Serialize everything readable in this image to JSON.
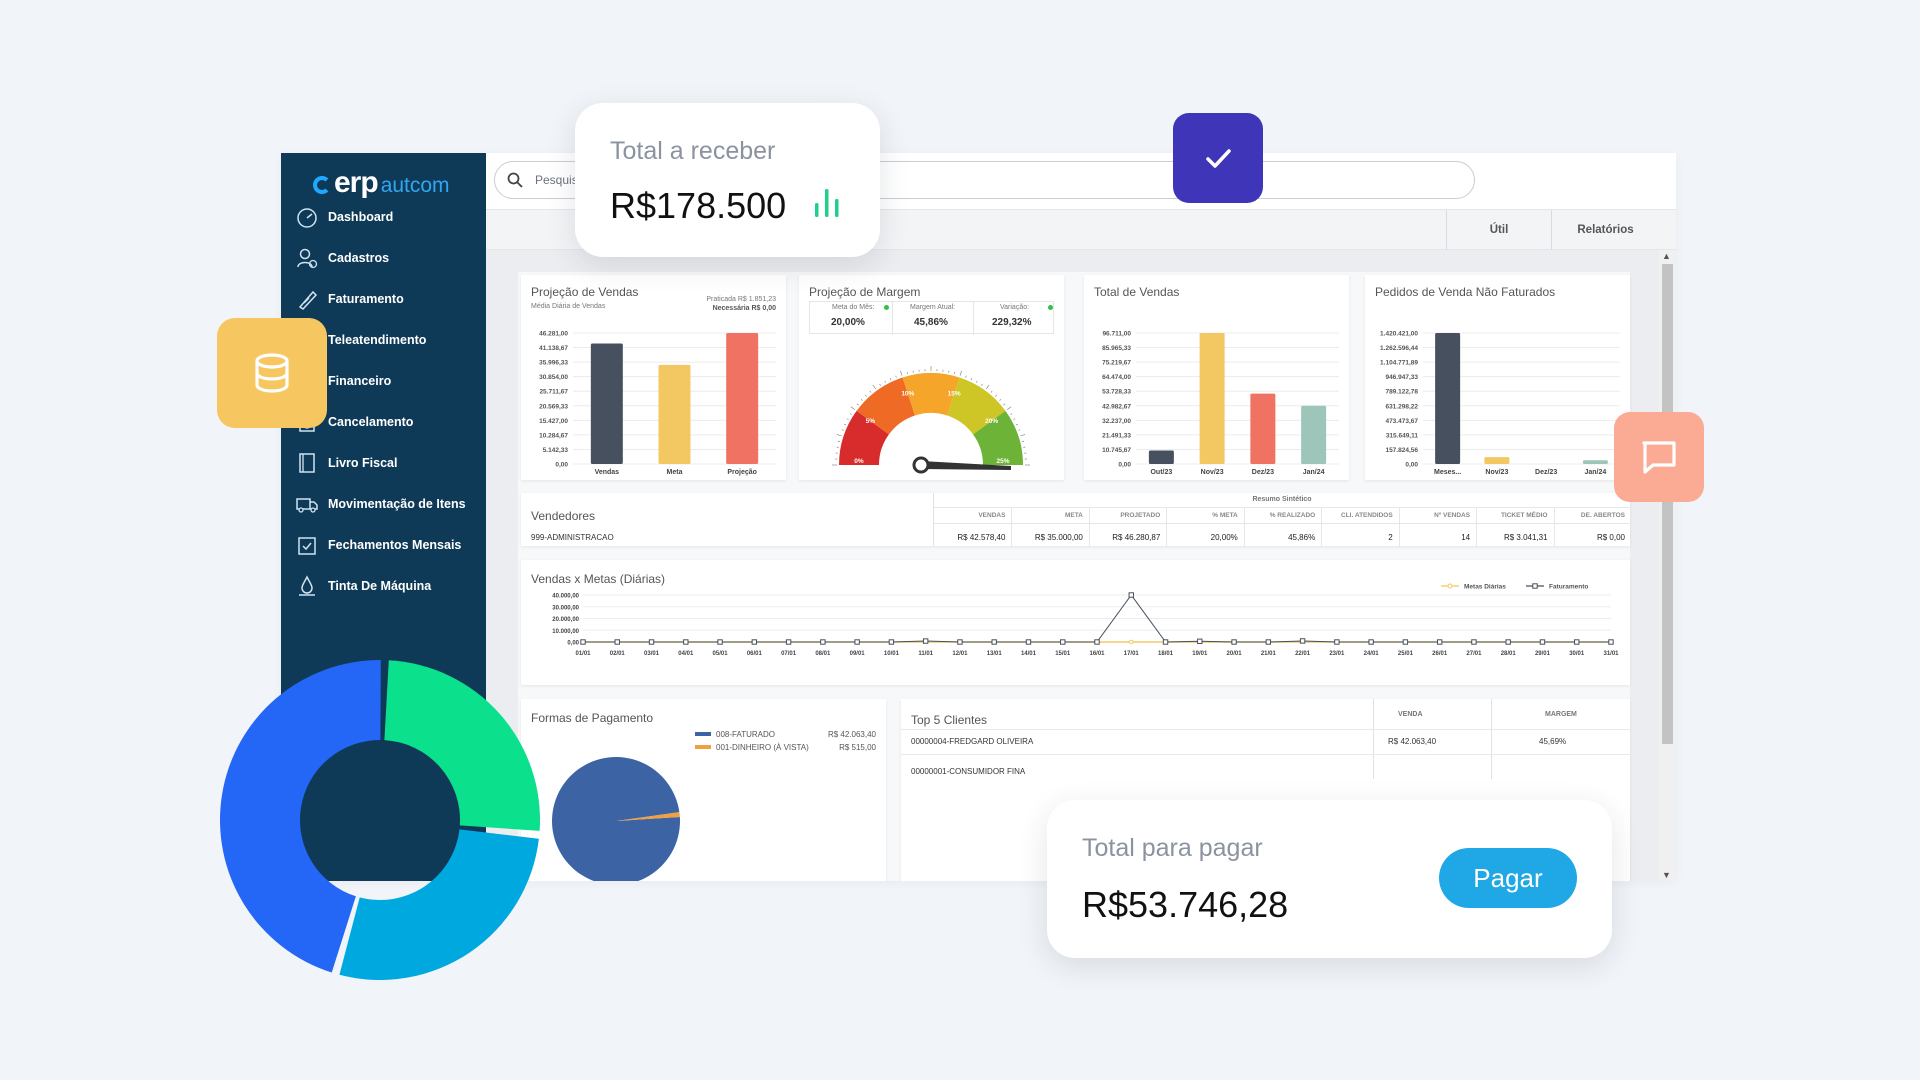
{
  "brand": {
    "erp": "erp",
    "suffix": "autcom",
    "accent": "#2fa6f2"
  },
  "search": {
    "placeholder": "Pesquisar"
  },
  "topnav": {
    "util": "Útil",
    "relatorios": "Relatórios"
  },
  "sidebar": {
    "items": [
      {
        "label": "Dashboard",
        "icon": "gauge-icon"
      },
      {
        "label": "Cadastros",
        "icon": "user-add-icon"
      },
      {
        "label": "Faturamento",
        "icon": "invoice-icon"
      },
      {
        "label": "Teleatendimento",
        "icon": "headset-icon"
      },
      {
        "label": "Financeiro",
        "icon": "money-icon"
      },
      {
        "label": "Cancelamento",
        "icon": "cancel-icon"
      },
      {
        "label": "Livro Fiscal",
        "icon": "book-icon"
      },
      {
        "label": "Movimentação de Itens",
        "icon": "truck-icon"
      },
      {
        "label": "Fechamentos Mensais",
        "icon": "calendar-check-icon"
      },
      {
        "label": "Tinta De Máquina",
        "icon": "ink-icon"
      }
    ]
  },
  "cards": {
    "receber": {
      "label": "Total a receber",
      "value": "R$178.500"
    },
    "pagar": {
      "label": "Total para pagar",
      "value": "R$53.746,28",
      "button": "Pagar"
    }
  },
  "projecao_vendas": {
    "title": "Projeção de Vendas",
    "subtitle": "Média Diária de Vendas",
    "praticada": "Praticada R$ 1.851,23",
    "necessaria": "Necessária R$ 0,00",
    "chart_data": {
      "type": "bar",
      "categories": [
        "Vendas",
        "Meta",
        "Projeção"
      ],
      "values": [
        42578.4,
        35000.0,
        46280.87
      ],
      "colors": [
        "#46505e",
        "#f3c863",
        "#f07263"
      ],
      "yticks": [
        "46.281,00",
        "41.138,67",
        "35.996,33",
        "30.854,00",
        "25.711,67",
        "20.569,33",
        "15.427,00",
        "10.284,67",
        "5.142,33",
        "0,00"
      ],
      "ylim": [
        0,
        46281
      ]
    }
  },
  "projecao_margem": {
    "title": "Projeção de Margem",
    "meta_label": "Meta do Mês:",
    "margem_label": "Margem Atual:",
    "variacao_label": "Variação:",
    "meta": "20,00%",
    "margem": "45,86%",
    "variacao": "229,32%",
    "gauge": {
      "labels": [
        "0%",
        "5%",
        "10%",
        "15%",
        "20%",
        "25%"
      ],
      "value": 25,
      "max": 25
    }
  },
  "total_vendas": {
    "title": "Total de Vendas",
    "chart_data": {
      "type": "bar",
      "categories": [
        "Out/23",
        "Nov/23",
        "Dez/23",
        "Jan/24"
      ],
      "values": [
        10000,
        96711,
        52000,
        43000
      ],
      "colors": [
        "#46505e",
        "#f3c863",
        "#f07263",
        "#9dc5b9"
      ],
      "yticks": [
        "96.711,00",
        "85.965,33",
        "75.219,67",
        "64.474,00",
        "53.728,33",
        "42.982,67",
        "32.237,00",
        "21.491,33",
        "10.745,67",
        "0,00"
      ],
      "ylim": [
        0,
        96711
      ]
    }
  },
  "pedidos": {
    "title": "Pedidos de Venda Não Faturados",
    "chart_data": {
      "type": "bar",
      "categories": [
        "Meses...",
        "Nov/23",
        "Dez/23",
        "Jan/24"
      ],
      "values": [
        1420000,
        75000,
        0,
        40000
      ],
      "colors": [
        "#46505e",
        "#f3c863",
        "#f07263",
        "#9dc5b9"
      ],
      "yticks": [
        "1.420.421,00",
        "1.262.596,44",
        "1.104.771,89",
        "946.947,33",
        "789.122,78",
        "631.298,22",
        "473.473,67",
        "315.649,11",
        "157.824,56",
        "0,00"
      ],
      "ylim": [
        0,
        1420421
      ]
    }
  },
  "vendedores": {
    "title": "Vendedores",
    "resumo": "Resumo Sintético",
    "columns": [
      "VENDAS",
      "META",
      "PROJETADO",
      "% META",
      "% REALIZADO",
      "CLI. ATENDIDOS",
      "Nº VENDAS",
      "TICKET MÉDIO",
      "DE. ABERTOS"
    ],
    "row_name": "999-ADMINISTRACAO",
    "row": [
      "R$ 42.578,40",
      "R$ 35.000,00",
      "R$ 46.280,87",
      "20,00%",
      "45,86%",
      "2",
      "14",
      "R$ 3.041,31",
      "R$ 0,00"
    ]
  },
  "vendas_metas": {
    "title": "Vendas x Metas (Diárias)",
    "chart_data": {
      "type": "line",
      "x": [
        "01/01",
        "02/01",
        "03/01",
        "04/01",
        "05/01",
        "06/01",
        "07/01",
        "08/01",
        "09/01",
        "10/01",
        "11/01",
        "12/01",
        "13/01",
        "14/01",
        "15/01",
        "16/01",
        "17/01",
        "18/01",
        "19/01",
        "20/01",
        "21/01",
        "22/01",
        "23/01",
        "24/01",
        "25/01",
        "26/01",
        "27/01",
        "28/01",
        "29/01",
        "30/01",
        "31/01"
      ],
      "yticks": [
        "40.000,00",
        "30.000,00",
        "20.000,00",
        "10.000,00",
        "0,00"
      ],
      "ylim": [
        0,
        40000
      ],
      "series": [
        {
          "name": "Metas Diárias",
          "color": "#f3c863",
          "values": [
            0,
            0,
            0,
            0,
            0,
            0,
            0,
            0,
            0,
            0,
            0,
            0,
            0,
            0,
            0,
            0,
            0,
            0,
            0,
            0,
            0,
            0,
            0,
            0,
            0,
            0,
            0,
            0,
            0,
            0,
            0
          ]
        },
        {
          "name": "Faturamento",
          "color": "#46505e",
          "values": [
            0,
            0,
            0,
            0,
            0,
            0,
            0,
            0,
            0,
            0,
            800,
            0,
            0,
            0,
            0,
            0,
            40000,
            0,
            600,
            0,
            0,
            900,
            0,
            0,
            0,
            0,
            0,
            0,
            0,
            0,
            0
          ]
        }
      ]
    }
  },
  "formas": {
    "title": "Formas de Pagamento",
    "chart_data": {
      "type": "pie",
      "series": [
        {
          "name": "008-FATURADO",
          "value": 42063.4,
          "label": "R$ 42.063,40",
          "color": "#3c64a4"
        },
        {
          "name": "001-DINHEIRO (À VISTA)",
          "value": 515.0,
          "label": "R$ 515,00",
          "color": "#f0a040"
        }
      ]
    }
  },
  "top5": {
    "title": "Top 5 Clientes",
    "columns": [
      "VENDA",
      "MARGEM"
    ],
    "rows": [
      {
        "name": "00000004-FREDGARD OLIVEIRA",
        "venda": "R$ 42.063,40",
        "margem": "45,69%"
      },
      {
        "name": "00000001-CONSUMIDOR FINA",
        "venda": "",
        "margem": ""
      }
    ]
  },
  "donut_data": {
    "type": "pie",
    "series": [
      {
        "value": 26,
        "color": "#0be08c"
      },
      {
        "value": 28,
        "color": "#00a8e0"
      },
      {
        "value": 46,
        "color": "#2466f5"
      }
    ]
  }
}
